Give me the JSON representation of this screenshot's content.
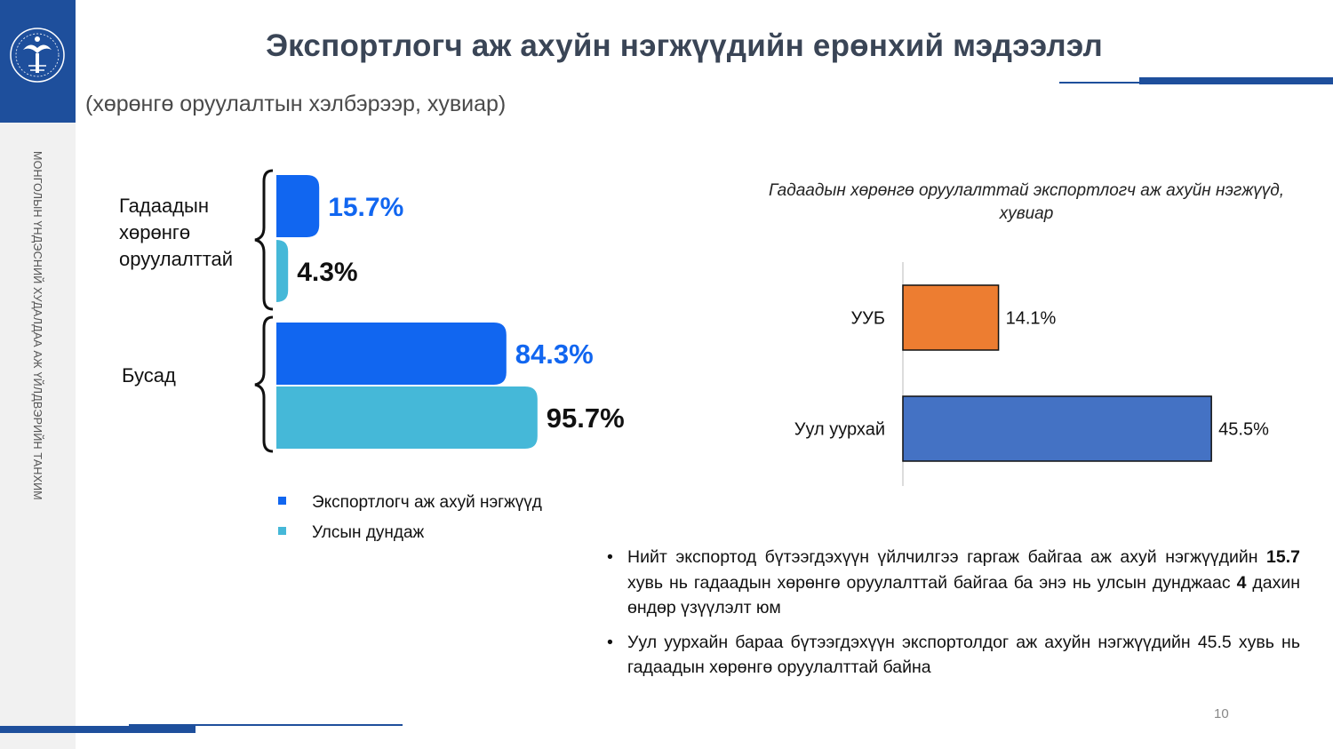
{
  "slide": {
    "title": "Экспортлогч аж ахуйн нэгжүүдийн ерөнхий мэдээлэл",
    "subtitle": "(хөрөнгө оруулалтын хэлбэрээр, хувиар)",
    "side_text": "МОНГОЛЫН ҮНДЭСНИЙ ХУДАЛДАА АЖ ҮЙЛДВЭРИЙН ТАНХИМ",
    "page_number": "10"
  },
  "colors": {
    "brand": "#1e4f9c",
    "exporters": "#1166f0",
    "national_avg": "#45b8d8",
    "ulaanbaatar": "#ed7d31",
    "mining": "#4472c4"
  },
  "chart_data": [
    {
      "type": "bar",
      "orientation": "horizontal",
      "title": "",
      "categories": [
        "Гадаадын хөрөнгө оруулалттай",
        "Бусад"
      ],
      "category_label_lines": [
        [
          "Гадаадын",
          "хөрөнгө",
          "оруулалттай"
        ],
        [
          "Бусад"
        ]
      ],
      "series": [
        {
          "name": "Экспортлогч аж ахуй нэгжүүд",
          "values": [
            15.7,
            84.3
          ],
          "labels": [
            "15.7%",
            "84.3%"
          ],
          "color": "#1166f0"
        },
        {
          "name": "Улсын дундаж",
          "values": [
            4.3,
            95.7
          ],
          "labels": [
            "4.3%",
            "95.7%"
          ],
          "color": "#45b8d8"
        }
      ],
      "xlim": [
        0,
        100
      ],
      "legend_position": "bottom",
      "grid": false
    },
    {
      "type": "bar",
      "orientation": "horizontal",
      "title": "Гадаадын хөрөнгө оруулалттай экспортлогч аж ахуйн нэгжүүд, хувиар",
      "categories": [
        "УУБ",
        "Уул уурхай"
      ],
      "values": [
        14.1,
        45.5
      ],
      "labels": [
        "14.1%",
        "45.5%"
      ],
      "colors": [
        "#ed7d31",
        "#4472c4"
      ],
      "xlim": [
        0,
        50
      ],
      "grid": false
    }
  ],
  "bullets": [
    {
      "parts": [
        {
          "text": "Нийт экспортод бүтээгдэхүүн үйлчилгээ гаргаж байгаа аж ахуй нэгжүүдийн ",
          "bold": false
        },
        {
          "text": "15.7",
          "bold": true
        },
        {
          "text": " хувь нь гадаадын хөрөнгө оруулалттай байгаа ба энэ нь улсын дунджаас ",
          "bold": false
        },
        {
          "text": "4",
          "bold": true
        },
        {
          "text": " дахин өндөр үзүүлэлт юм",
          "bold": false
        }
      ]
    },
    {
      "parts": [
        {
          "text": "Уул уурхайн бараа бүтээгдэхүүн экспортолдог аж ахуйн нэгжүүдийн 45.5 хувь нь гадаадын хөрөнгө оруулалттай байна",
          "bold": false
        }
      ]
    }
  ],
  "bullet_symbol": "•"
}
